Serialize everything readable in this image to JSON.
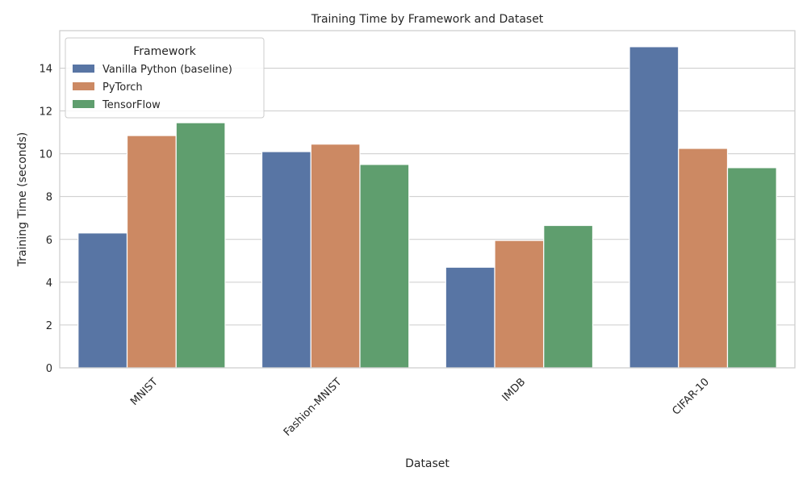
{
  "chart_data": {
    "type": "bar",
    "title": "Training Time by Framework and Dataset",
    "xlabel": "Dataset",
    "ylabel": "Training Time (seconds)",
    "categories": [
      "MNIST",
      "Fashion-MNIST",
      "IMDB",
      "CIFAR-10"
    ],
    "series": [
      {
        "name": "Vanilla Python (baseline)",
        "color": "#5875a4",
        "values": [
          6.3,
          10.1,
          4.7,
          15.0
        ]
      },
      {
        "name": "PyTorch",
        "color": "#cc8963",
        "values": [
          10.85,
          10.45,
          5.95,
          10.25
        ]
      },
      {
        "name": "TensorFlow",
        "color": "#5f9e6e",
        "values": [
          11.45,
          9.5,
          6.65,
          9.35
        ]
      }
    ],
    "ylim": [
      0,
      15.75
    ],
    "yticks": [
      0,
      2,
      4,
      6,
      8,
      10,
      12,
      14
    ],
    "grid": true,
    "legend": {
      "title": "Framework",
      "placement": "top-left"
    }
  }
}
